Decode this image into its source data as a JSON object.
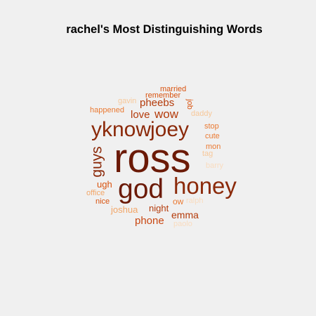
{
  "title": "rachel's Most Distinguishing Words",
  "palette": {
    "darkest": "#6b1a07",
    "dark": "#8b2a0a",
    "mid_dark": "#b43b0b",
    "mid": "#d9530f",
    "mid_light": "#ea7a33",
    "light": "#f2a668",
    "lighter": "#f7c89a",
    "lightest": "#f9dcc0"
  },
  "words": [
    {
      "text": "ross",
      "tone": "darkest"
    },
    {
      "text": "god",
      "tone": "darkest"
    },
    {
      "text": "honey",
      "tone": "dark"
    },
    {
      "text": "yknow",
      "tone": "dark"
    },
    {
      "text": "joey",
      "tone": "dark"
    },
    {
      "text": "guys",
      "tone": "dark"
    },
    {
      "text": "pheebs",
      "tone": "mid_dark"
    },
    {
      "text": "love",
      "tone": "mid_dark"
    },
    {
      "text": "wow",
      "tone": "mid_dark"
    },
    {
      "text": "night",
      "tone": "mid_dark"
    },
    {
      "text": "emma",
      "tone": "mid_dark"
    },
    {
      "text": "phone",
      "tone": "mid_dark"
    },
    {
      "text": "ugh",
      "tone": "mid"
    },
    {
      "text": "nice",
      "tone": "mid"
    },
    {
      "text": "married",
      "tone": "mid"
    },
    {
      "text": "remember",
      "tone": "mid"
    },
    {
      "text": "happened",
      "tone": "mid_light"
    },
    {
      "text": "job",
      "tone": "mid"
    },
    {
      "text": "stop",
      "tone": "mid_light"
    },
    {
      "text": "cute",
      "tone": "mid_light"
    },
    {
      "text": "mon",
      "tone": "mid_light"
    },
    {
      "text": "ow",
      "tone": "mid_light"
    },
    {
      "text": "joshua",
      "tone": "light"
    },
    {
      "text": "office",
      "tone": "light"
    },
    {
      "text": "daddy",
      "tone": "lighter"
    },
    {
      "text": "tag",
      "tone": "lighter"
    },
    {
      "text": "gavin",
      "tone": "lighter"
    },
    {
      "text": "barry",
      "tone": "lightest"
    },
    {
      "text": "ralph",
      "tone": "lightest"
    },
    {
      "text": "paolo",
      "tone": "lightest"
    }
  ]
}
